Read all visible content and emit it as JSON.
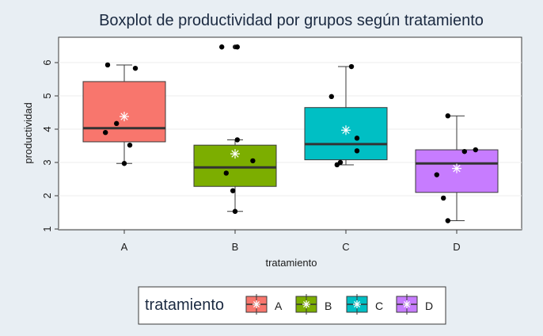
{
  "chart_data": {
    "type": "boxplot",
    "title": "Boxplot de productividad por grupos según tratamiento",
    "xlabel": "tratamiento",
    "ylabel": "productividad",
    "categories": [
      "A",
      "B",
      "C",
      "D"
    ],
    "ylim": [
      1,
      6.7
    ],
    "yticks": [
      "1",
      "2",
      "3",
      "4",
      "5",
      "6"
    ],
    "grid": true,
    "legend": {
      "title": "tratamiento",
      "placement": "bottom",
      "entries": [
        "A",
        "B",
        "C",
        "D"
      ]
    },
    "colors": [
      "#f8766d",
      "#7cae00",
      "#00bfc4",
      "#c77cff"
    ],
    "boxes": [
      {
        "group": "A",
        "whisker_low": 2.97,
        "q1": 3.62,
        "median": 4.03,
        "q3": 5.43,
        "whisker_high": 5.93,
        "mean": 4.38,
        "points": [
          [
            -0.15,
            5.93
          ],
          [
            0.1,
            5.83
          ],
          [
            -0.17,
            3.9
          ],
          [
            -0.07,
            4.17
          ],
          [
            0.05,
            3.52
          ],
          [
            0.0,
            2.97
          ]
        ]
      },
      {
        "group": "B",
        "whisker_low": 1.53,
        "q1": 2.28,
        "median": 2.85,
        "q3": 3.52,
        "whisker_high": 3.68,
        "mean": 3.26,
        "outliers": [
          6.47
        ],
        "points": [
          [
            -0.12,
            6.47
          ],
          [
            0.02,
            6.47
          ],
          [
            0.02,
            3.68
          ],
          [
            0.16,
            3.05
          ],
          [
            -0.08,
            2.68
          ],
          [
            -0.02,
            2.15
          ],
          [
            0.0,
            1.53
          ]
        ]
      },
      {
        "group": "C",
        "whisker_low": 2.93,
        "q1": 3.08,
        "median": 3.55,
        "q3": 4.65,
        "whisker_high": 5.88,
        "mean": 3.97,
        "points": [
          [
            0.05,
            5.88
          ],
          [
            -0.13,
            4.98
          ],
          [
            0.1,
            3.73
          ],
          [
            0.1,
            3.35
          ],
          [
            -0.05,
            3.0
          ],
          [
            -0.08,
            2.93
          ]
        ]
      },
      {
        "group": "D",
        "whisker_low": 1.25,
        "q1": 2.1,
        "median": 2.97,
        "q3": 3.38,
        "whisker_high": 4.4,
        "mean": 2.82,
        "points": [
          [
            -0.08,
            4.4
          ],
          [
            0.17,
            3.38
          ],
          [
            0.07,
            3.33
          ],
          [
            -0.18,
            2.63
          ],
          [
            -0.12,
            1.93
          ],
          [
            -0.08,
            1.25
          ]
        ]
      }
    ]
  }
}
